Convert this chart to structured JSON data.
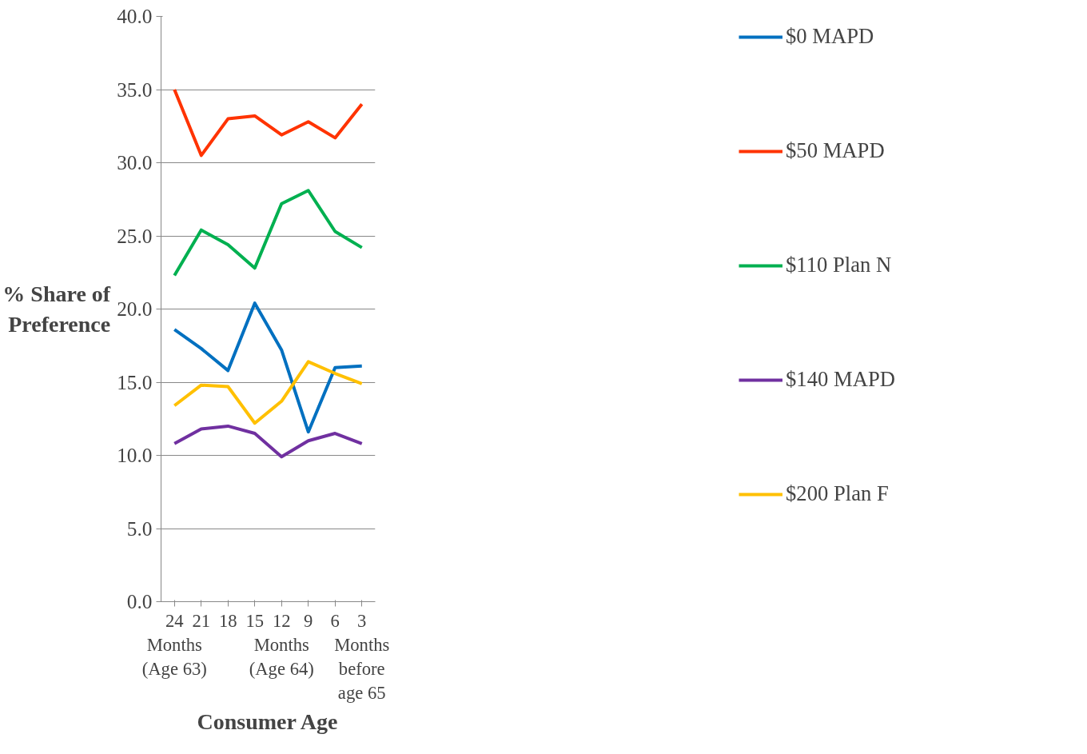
{
  "chart_data": {
    "type": "line",
    "xlabel": "Consumer Age",
    "ylabel": "% Share of\nPreference",
    "categories": [
      "24\nMonths\n(Age 63)",
      "21",
      "18",
      "15",
      "12\nMonths\n(Age 64)",
      "9",
      "6",
      "3\nMonths\nbefore\nage 65"
    ],
    "series": [
      {
        "name": "$0 MAPD",
        "color": "#0070c0",
        "values": [
          18.6,
          17.3,
          15.8,
          20.4,
          17.2,
          11.6,
          16.0,
          16.1
        ]
      },
      {
        "name": "$50 MAPD",
        "color": "#ff3300",
        "values": [
          35.0,
          30.5,
          33.0,
          33.2,
          31.9,
          32.8,
          31.7,
          34.0
        ]
      },
      {
        "name": "$110 Plan N",
        "color": "#00b050",
        "values": [
          22.3,
          25.4,
          24.4,
          22.8,
          27.2,
          28.1,
          25.3,
          24.2
        ]
      },
      {
        "name": "$140 MAPD",
        "color": "#7030a0",
        "values": [
          10.8,
          11.8,
          12.0,
          11.5,
          9.9,
          11.0,
          11.5,
          10.8
        ]
      },
      {
        "name": "$200 Plan F",
        "color": "#ffc000",
        "values": [
          13.4,
          14.8,
          14.7,
          12.2,
          13.7,
          16.4,
          15.6,
          14.9
        ]
      }
    ],
    "ylim": [
      0,
      40
    ],
    "yticks": [
      {
        "value": 0,
        "label": "0.0"
      },
      {
        "value": 5,
        "label": "5.0"
      },
      {
        "value": 10,
        "label": "10.0"
      },
      {
        "value": 15,
        "label": "15.0"
      },
      {
        "value": 20,
        "label": "20.0"
      },
      {
        "value": 25,
        "label": "25.0"
      },
      {
        "value": 30,
        "label": "30.0"
      },
      {
        "value": 35,
        "label": "35.0"
      },
      {
        "value": 40,
        "label": "40.0"
      }
    ],
    "grid": "y",
    "legend": "right",
    "marker": "none",
    "line_style": "solid"
  }
}
